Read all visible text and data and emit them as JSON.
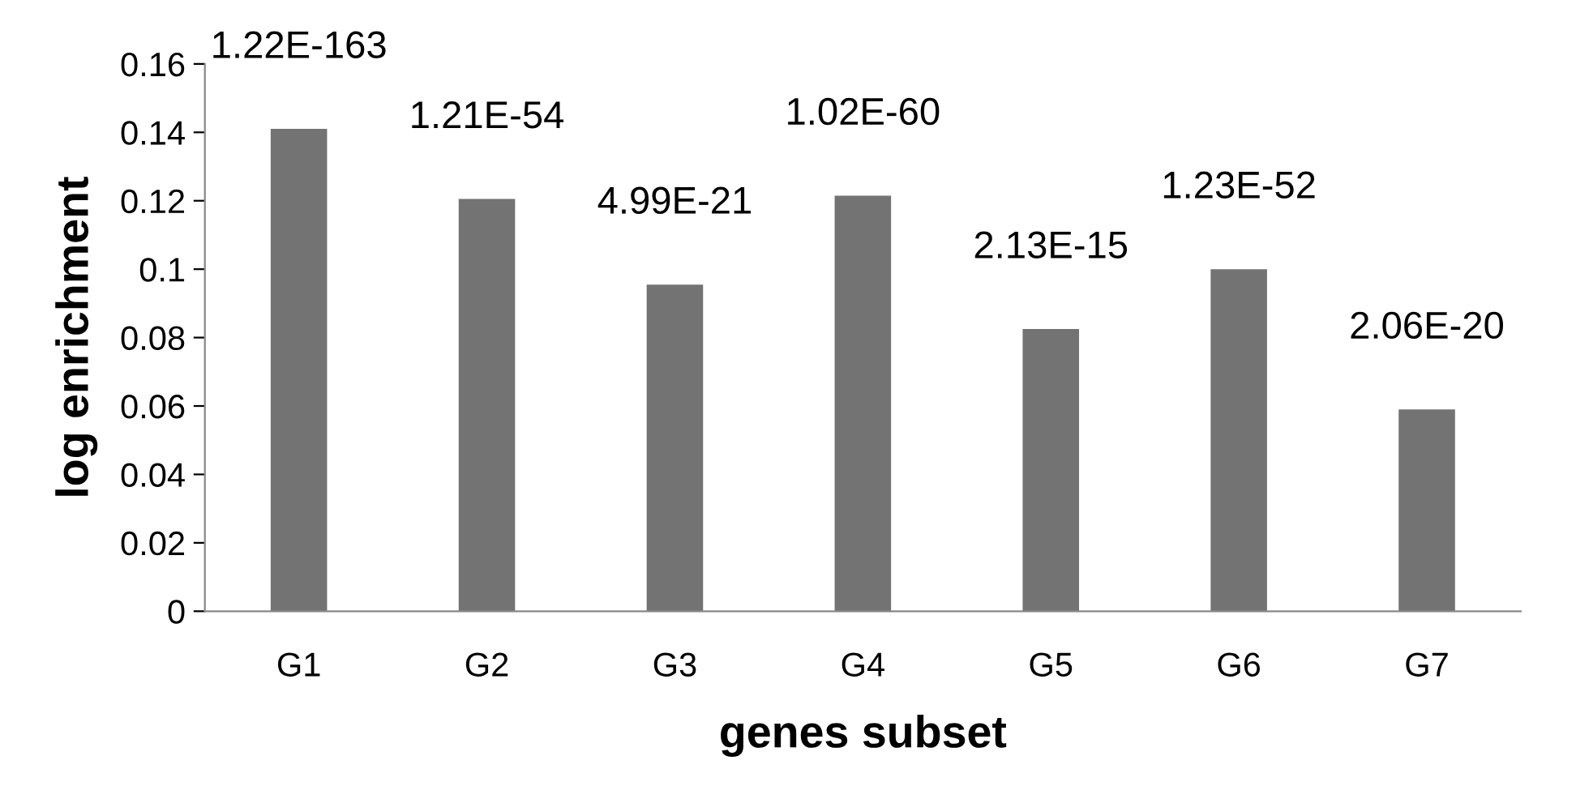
{
  "chart_data": {
    "type": "bar",
    "xlabel": "genes subset",
    "ylabel": "log enrichment",
    "categories": [
      "G1",
      "G2",
      "G3",
      "G4",
      "G5",
      "G6",
      "G7"
    ],
    "values": [
      0.141,
      0.1205,
      0.0955,
      0.1215,
      0.0825,
      0.1,
      0.059
    ],
    "annotations": [
      {
        "text": "1.22E-163",
        "x": "G1",
        "y": 0.141
      },
      {
        "text": "1.21E-54",
        "x": "G2",
        "y": 0.1205
      },
      {
        "text": "4.99E-21",
        "x": "G3",
        "y": 0.0955
      },
      {
        "text": "1.02E-60",
        "x": "G4",
        "y": 0.1215
      },
      {
        "text": "2.13E-15",
        "x": "G5",
        "y": 0.0825
      },
      {
        "text": "1.23E-52",
        "x": "G6",
        "y": 0.1
      },
      {
        "text": "2.06E-20",
        "x": "G7",
        "y": 0.059
      }
    ],
    "color": "#737373",
    "ylim": [
      0,
      0.16
    ],
    "yticks": [
      0,
      0.02,
      0.04,
      0.06,
      0.08,
      0.1,
      0.12,
      0.14,
      0.16
    ],
    "grid": false,
    "legend": false
  }
}
